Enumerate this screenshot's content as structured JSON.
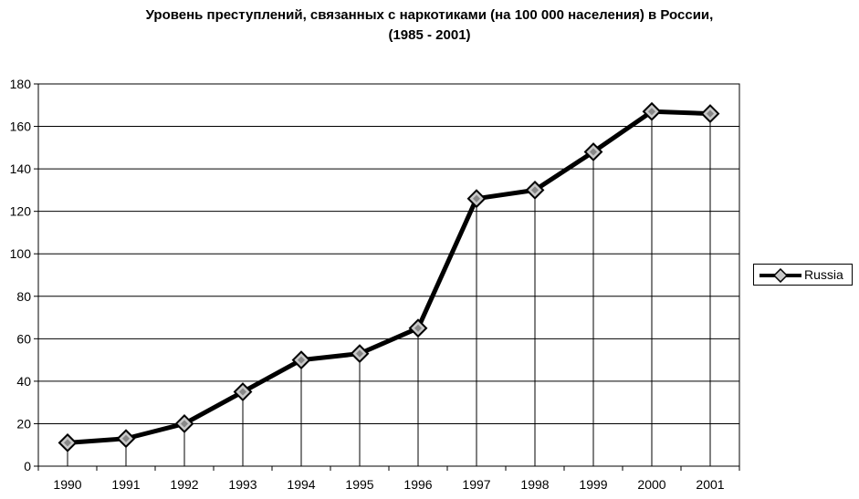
{
  "chart_data": {
    "type": "line",
    "title_lines": [
      "Уровень преступлений, связанных с наркотиками (на 100 000 населения) в России,",
      "(1985 - 2001)"
    ],
    "categories": [
      "1990",
      "1991",
      "1992",
      "1993",
      "1994",
      "1995",
      "1996",
      "1997",
      "1998",
      "1999",
      "2000",
      "2001"
    ],
    "series": [
      {
        "name": "Russia",
        "values": [
          11,
          13,
          20,
          35,
          50,
          53,
          65,
          126,
          130,
          148,
          167,
          166
        ],
        "color": "#000000",
        "marker": "diamond"
      }
    ],
    "ylim": [
      0,
      180
    ],
    "yticks": [
      0,
      20,
      40,
      60,
      80,
      100,
      120,
      140,
      160,
      180
    ],
    "grid": "horizontal",
    "drop_lines": true,
    "legend": {
      "placement": "right",
      "entries": [
        "Russia"
      ]
    }
  }
}
